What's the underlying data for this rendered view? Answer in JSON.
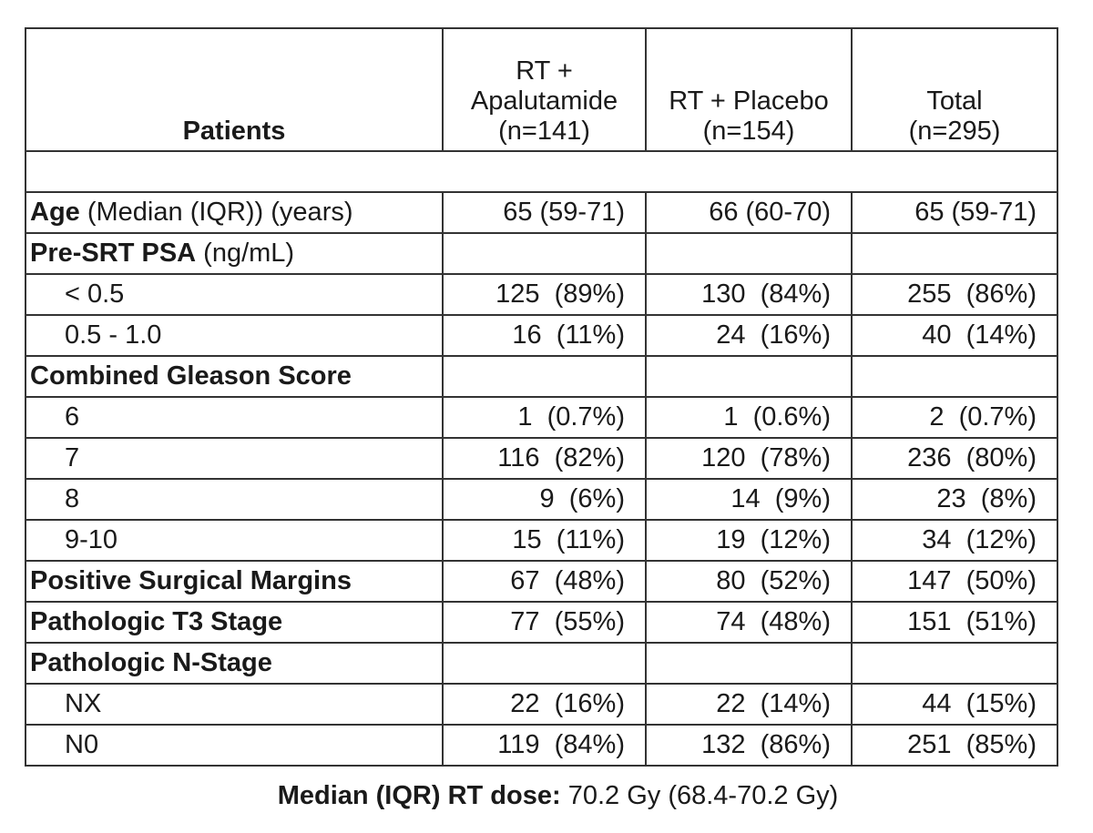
{
  "header": {
    "row_title": "Patients",
    "groups": [
      {
        "name": "RT + Apalutamide",
        "n": "(n=141)"
      },
      {
        "name": "RT + Placebo",
        "n": "(n=154)"
      },
      {
        "name": "Total",
        "n": "(n=295)"
      }
    ]
  },
  "rows": [
    {
      "heading": "Age",
      "note": "(Median (IQR)) (years)",
      "cells": [
        "65 (59-71)",
        "66 (60-70)",
        "65 (59-71)"
      ]
    },
    {
      "heading": "Pre-SRT PSA",
      "note": "(ng/mL)"
    },
    {
      "label": "< 0.5",
      "cells": [
        "125  (89%)",
        "130  (84%)",
        "255  (86%)"
      ]
    },
    {
      "label": "0.5 - 1.0",
      "cells": [
        "16  (11%)",
        "24  (16%)",
        "40  (14%)"
      ]
    },
    {
      "heading": "Combined Gleason Score"
    },
    {
      "label": "6",
      "cells": [
        "1  (0.7%)",
        "1  (0.6%)",
        "2  (0.7%)"
      ]
    },
    {
      "label": "7",
      "cells": [
        "116  (82%)",
        "120  (78%)",
        "236  (80%)"
      ]
    },
    {
      "label": "8",
      "cells": [
        "9  (6%)",
        "14  (9%)",
        "23  (8%)"
      ]
    },
    {
      "label": "9-10",
      "cells": [
        "15  (11%)",
        "19  (12%)",
        "34  (12%)"
      ]
    },
    {
      "heading": "Positive Surgical Margins",
      "cells": [
        "67  (48%)",
        "80  (52%)",
        "147  (50%)"
      ]
    },
    {
      "heading": "Pathologic T3 Stage",
      "cells": [
        "77  (55%)",
        "74  (48%)",
        "151  (51%)"
      ]
    },
    {
      "heading": "Pathologic N-Stage"
    },
    {
      "label": "NX",
      "cells": [
        "22  (16%)",
        "22  (14%)",
        "44  (15%)"
      ]
    },
    {
      "label": "N0",
      "cells": [
        "119  (84%)",
        "132  (86%)",
        "251  (85%)"
      ]
    }
  ],
  "footer": {
    "bold": "Median (IQR) RT dose:",
    "text": "70.2 Gy (68.4-70.2 Gy)"
  }
}
